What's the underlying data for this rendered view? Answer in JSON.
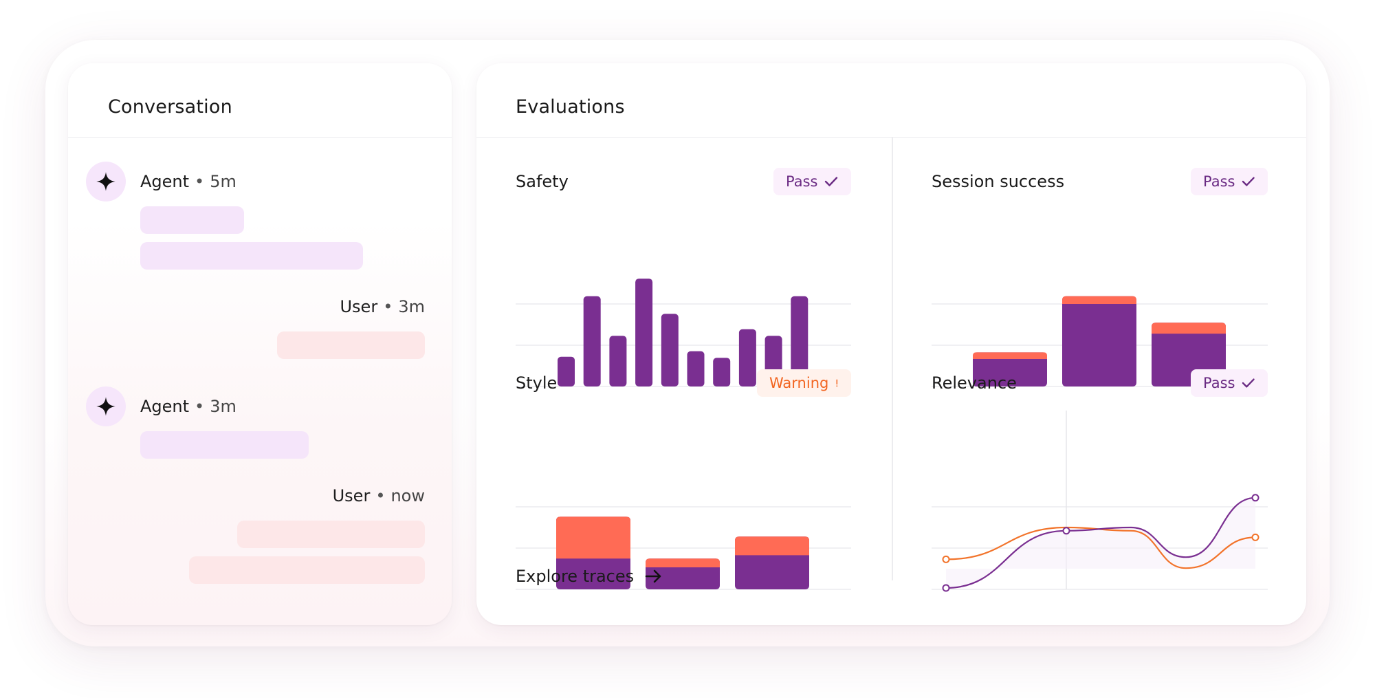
{
  "colors": {
    "purple": "#7a2f91",
    "coral": "#ff6b55",
    "orange_line": "#f2732a",
    "agent_bubble": "#f5e5fa",
    "user_bubble": "#fde7e8",
    "pass_badge_bg": "#fbf0fc",
    "warn_badge_bg": "#fff2ec"
  },
  "conversation": {
    "title": "Conversation",
    "messages": [
      {
        "role": "Agent",
        "time": "5m",
        "icon": "sparkle-icon"
      },
      {
        "role": "User",
        "time": "3m"
      },
      {
        "role": "Agent",
        "time": "3m",
        "icon": "sparkle-icon"
      },
      {
        "role": "User",
        "time": "now"
      }
    ],
    "separator": "•"
  },
  "evaluations": {
    "title": "Evaluations",
    "explore_label": "Explore traces",
    "explore_icon": "arrow-right-icon",
    "cards": {
      "safety": {
        "title": "Safety",
        "status": "Pass",
        "status_icon": "check-icon"
      },
      "session_success": {
        "title": "Session success",
        "status": "Pass",
        "status_icon": "check-icon"
      },
      "style": {
        "title": "Style",
        "status": "Warning",
        "status_icon": "exclamation-icon"
      },
      "relevance": {
        "title": "Relevance",
        "status": "Pass",
        "status_icon": "check-icon"
      }
    }
  },
  "chart_data": [
    {
      "id": "safety",
      "type": "bar",
      "ylim": [
        0,
        100
      ],
      "values": [
        27,
        82,
        46,
        98,
        66,
        32,
        26,
        52,
        46,
        82
      ]
    },
    {
      "id": "session_success",
      "type": "bar",
      "stacked": true,
      "ylim": [
        0,
        100
      ],
      "series": [
        {
          "values": [
            25,
            75,
            48
          ]
        },
        {
          "values": [
            6,
            7,
            10
          ]
        }
      ]
    },
    {
      "id": "style",
      "type": "bar",
      "stacked": true,
      "ylim": [
        0,
        100
      ],
      "series": [
        {
          "values": [
            28,
            20,
            31
          ]
        },
        {
          "values": [
            38,
            8,
            17
          ]
        }
      ]
    },
    {
      "id": "relevance",
      "type": "line",
      "ylim": [
        0,
        100
      ],
      "x": [
        0,
        1,
        2,
        3,
        4
      ],
      "series": [
        {
          "values": [
            0,
            52,
            55,
            28,
            82
          ]
        },
        {
          "values": [
            26,
            55,
            52,
            18,
            46
          ]
        }
      ]
    }
  ]
}
